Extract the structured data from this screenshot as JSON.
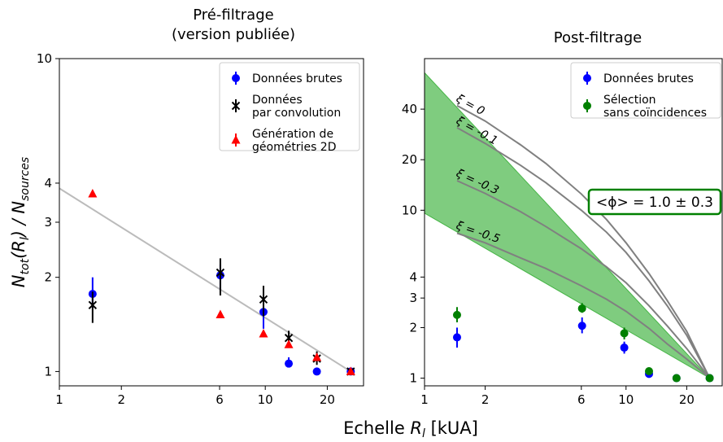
{
  "figure": {
    "xlabel_prefix": "Echelle ",
    "xlabel_var": "R",
    "xlabel_sub": "l",
    "xlabel_suffix": " [kUA]",
    "ylabel_n1": "N",
    "ylabel_sub1": "tot",
    "ylabel_mid": "(R",
    "ylabel_sub2": "l",
    "ylabel_mid2": ") / N",
    "ylabel_sub3": "sources"
  },
  "chart_data": [
    {
      "type": "scatter",
      "title_line1": "Pré-filtrage",
      "title_line2": "(version publiée)",
      "x_scale": "log",
      "y_scale": "log",
      "xlim": [
        1,
        30
      ],
      "ylim": [
        0.9,
        10
      ],
      "xticks": [
        {
          "v": 1,
          "label": "1"
        },
        {
          "v": 2,
          "label": "2"
        },
        {
          "v": 6,
          "label": "6"
        },
        {
          "v": 10,
          "label": "10"
        },
        {
          "v": 20,
          "label": "20"
        }
      ],
      "yticks": [
        {
          "v": 1,
          "label": "1"
        },
        {
          "v": 2,
          "label": "2"
        },
        {
          "v": 3,
          "label": "3"
        },
        {
          "v": 4,
          "label": "4"
        },
        {
          "v": 10,
          "label": "10"
        }
      ],
      "legend_position": "top-right",
      "trend_line": {
        "color": "#bbbbbb",
        "x": [
          1,
          26
        ],
        "y": [
          3.85,
          1.0
        ]
      },
      "series": [
        {
          "name": "Données brutes",
          "marker": "circle",
          "color": "#0000ff",
          "points": [
            {
              "x": 1.45,
              "y": 1.77,
              "err": [
                1.6,
                2.0
              ]
            },
            {
              "x": 6.05,
              "y": 2.03,
              "err": [
                1.83,
                2.2
              ]
            },
            {
              "x": 9.8,
              "y": 1.55,
              "err": [
                1.37,
                1.7
              ]
            },
            {
              "x": 13.0,
              "y": 1.06,
              "err": [
                1.03,
                1.11
              ]
            },
            {
              "x": 17.8,
              "y": 1.0,
              "err": null
            },
            {
              "x": 26.0,
              "y": 1.0,
              "err": null
            }
          ]
        },
        {
          "name": "Données\npar convolution",
          "marker": "x",
          "color": "#000000",
          "points": [
            {
              "x": 1.45,
              "y": 1.63,
              "err": [
                1.43,
                1.8
              ]
            },
            {
              "x": 6.05,
              "y": 2.07,
              "err": [
                1.75,
                2.3
              ]
            },
            {
              "x": 9.8,
              "y": 1.7,
              "err": [
                1.5,
                1.88
              ]
            },
            {
              "x": 13.0,
              "y": 1.28,
              "err": [
                1.2,
                1.35
              ]
            },
            {
              "x": 17.8,
              "y": 1.1,
              "err": [
                1.05,
                1.16
              ]
            },
            {
              "x": 26.0,
              "y": 1.0,
              "err": null
            }
          ]
        },
        {
          "name": "Génération de\ngéométries 2D",
          "marker": "triangle",
          "color": "#ff0000",
          "points": [
            {
              "x": 1.45,
              "y": 3.7,
              "err": null
            },
            {
              "x": 6.05,
              "y": 1.52,
              "err": null
            },
            {
              "x": 9.8,
              "y": 1.32,
              "err": null
            },
            {
              "x": 13.0,
              "y": 1.22,
              "err": null
            },
            {
              "x": 17.8,
              "y": 1.11,
              "err": null
            },
            {
              "x": 26.0,
              "y": 1.0,
              "err": null
            }
          ]
        }
      ]
    },
    {
      "type": "scatter",
      "title_line1": "Post-filtrage",
      "x_scale": "log",
      "y_scale": "log",
      "xlim": [
        1,
        30
      ],
      "ylim": [
        0.9,
        80
      ],
      "xticks": [
        {
          "v": 1,
          "label": "1"
        },
        {
          "v": 2,
          "label": "2"
        },
        {
          "v": 6,
          "label": "6"
        },
        {
          "v": 10,
          "label": "10"
        },
        {
          "v": 20,
          "label": "20"
        }
      ],
      "yticks": [
        {
          "v": 1,
          "label": "1"
        },
        {
          "v": 2,
          "label": "2"
        },
        {
          "v": 3,
          "label": "3"
        },
        {
          "v": 4,
          "label": "4"
        },
        {
          "v": 10,
          "label": "10"
        },
        {
          "v": 20,
          "label": "20"
        },
        {
          "v": 40,
          "label": "40"
        }
      ],
      "legend_position": "top-right",
      "band": {
        "color": "#009900",
        "x_left": 1,
        "y_left_top": 66,
        "y_left_bottom": 9.6,
        "x_right": 26,
        "y_right": 1.0
      },
      "annotation": "<ϕ> = 1.0 ± 0.3",
      "curves": [
        {
          "label": "ξ = 0",
          "color": "#808080",
          "x": [
            1.45,
            2,
            3,
            4,
            6,
            8,
            10,
            13,
            16,
            20,
            26
          ],
          "y": [
            42,
            34,
            24.5,
            19,
            12.5,
            8.8,
            6.4,
            4.2,
            2.9,
            1.9,
            1.0
          ]
        },
        {
          "label": "ξ = -0.1",
          "color": "#808080",
          "x": [
            1.45,
            2,
            3,
            4,
            6,
            8,
            10,
            13,
            16,
            20,
            26
          ],
          "y": [
            31,
            25,
            18.5,
            14.6,
            10,
            7.4,
            5.6,
            3.8,
            2.7,
            1.8,
            1.0
          ]
        },
        {
          "label": "ξ = -0.3",
          "color": "#808080",
          "x": [
            1.45,
            2,
            3,
            4,
            6,
            8,
            10,
            13,
            16,
            20,
            26
          ],
          "y": [
            15,
            12.6,
            9.8,
            8.0,
            5.9,
            4.6,
            3.7,
            2.7,
            2.05,
            1.5,
            1.0
          ]
        },
        {
          "label": "ξ = -0.5",
          "color": "#808080",
          "x": [
            1.45,
            2,
            3,
            4,
            6,
            8,
            10,
            13,
            16,
            20,
            26
          ],
          "y": [
            7.3,
            6.4,
            5.2,
            4.5,
            3.55,
            2.95,
            2.5,
            1.98,
            1.6,
            1.3,
            1.0
          ]
        }
      ],
      "series": [
        {
          "name": "Données brutes",
          "marker": "circle",
          "color": "#0000ff",
          "points": [
            {
              "x": 1.45,
              "y": 1.75,
              "err": [
                1.52,
                2.0
              ]
            },
            {
              "x": 6.05,
              "y": 2.05,
              "err": [
                1.85,
                2.3
              ]
            },
            {
              "x": 9.8,
              "y": 1.52,
              "err": [
                1.4,
                1.65
              ]
            },
            {
              "x": 13.0,
              "y": 1.06,
              "err": [
                1.02,
                1.11
              ]
            },
            {
              "x": 17.8,
              "y": 1.0,
              "err": null
            },
            {
              "x": 26.0,
              "y": 1.0,
              "err": null
            }
          ]
        },
        {
          "name": "Sélection\nsans coïncidences",
          "marker": "circle",
          "color": "#008000",
          "points": [
            {
              "x": 1.45,
              "y": 2.38,
              "err": [
                2.15,
                2.65
              ]
            },
            {
              "x": 6.05,
              "y": 2.6,
              "err": [
                2.45,
                2.8
              ]
            },
            {
              "x": 9.8,
              "y": 1.85,
              "err": [
                1.7,
                2.0
              ]
            },
            {
              "x": 13.0,
              "y": 1.1,
              "err": [
                1.06,
                1.14
              ]
            },
            {
              "x": 17.8,
              "y": 1.0,
              "err": null
            },
            {
              "x": 26.0,
              "y": 1.0,
              "err": null
            }
          ]
        }
      ]
    }
  ]
}
